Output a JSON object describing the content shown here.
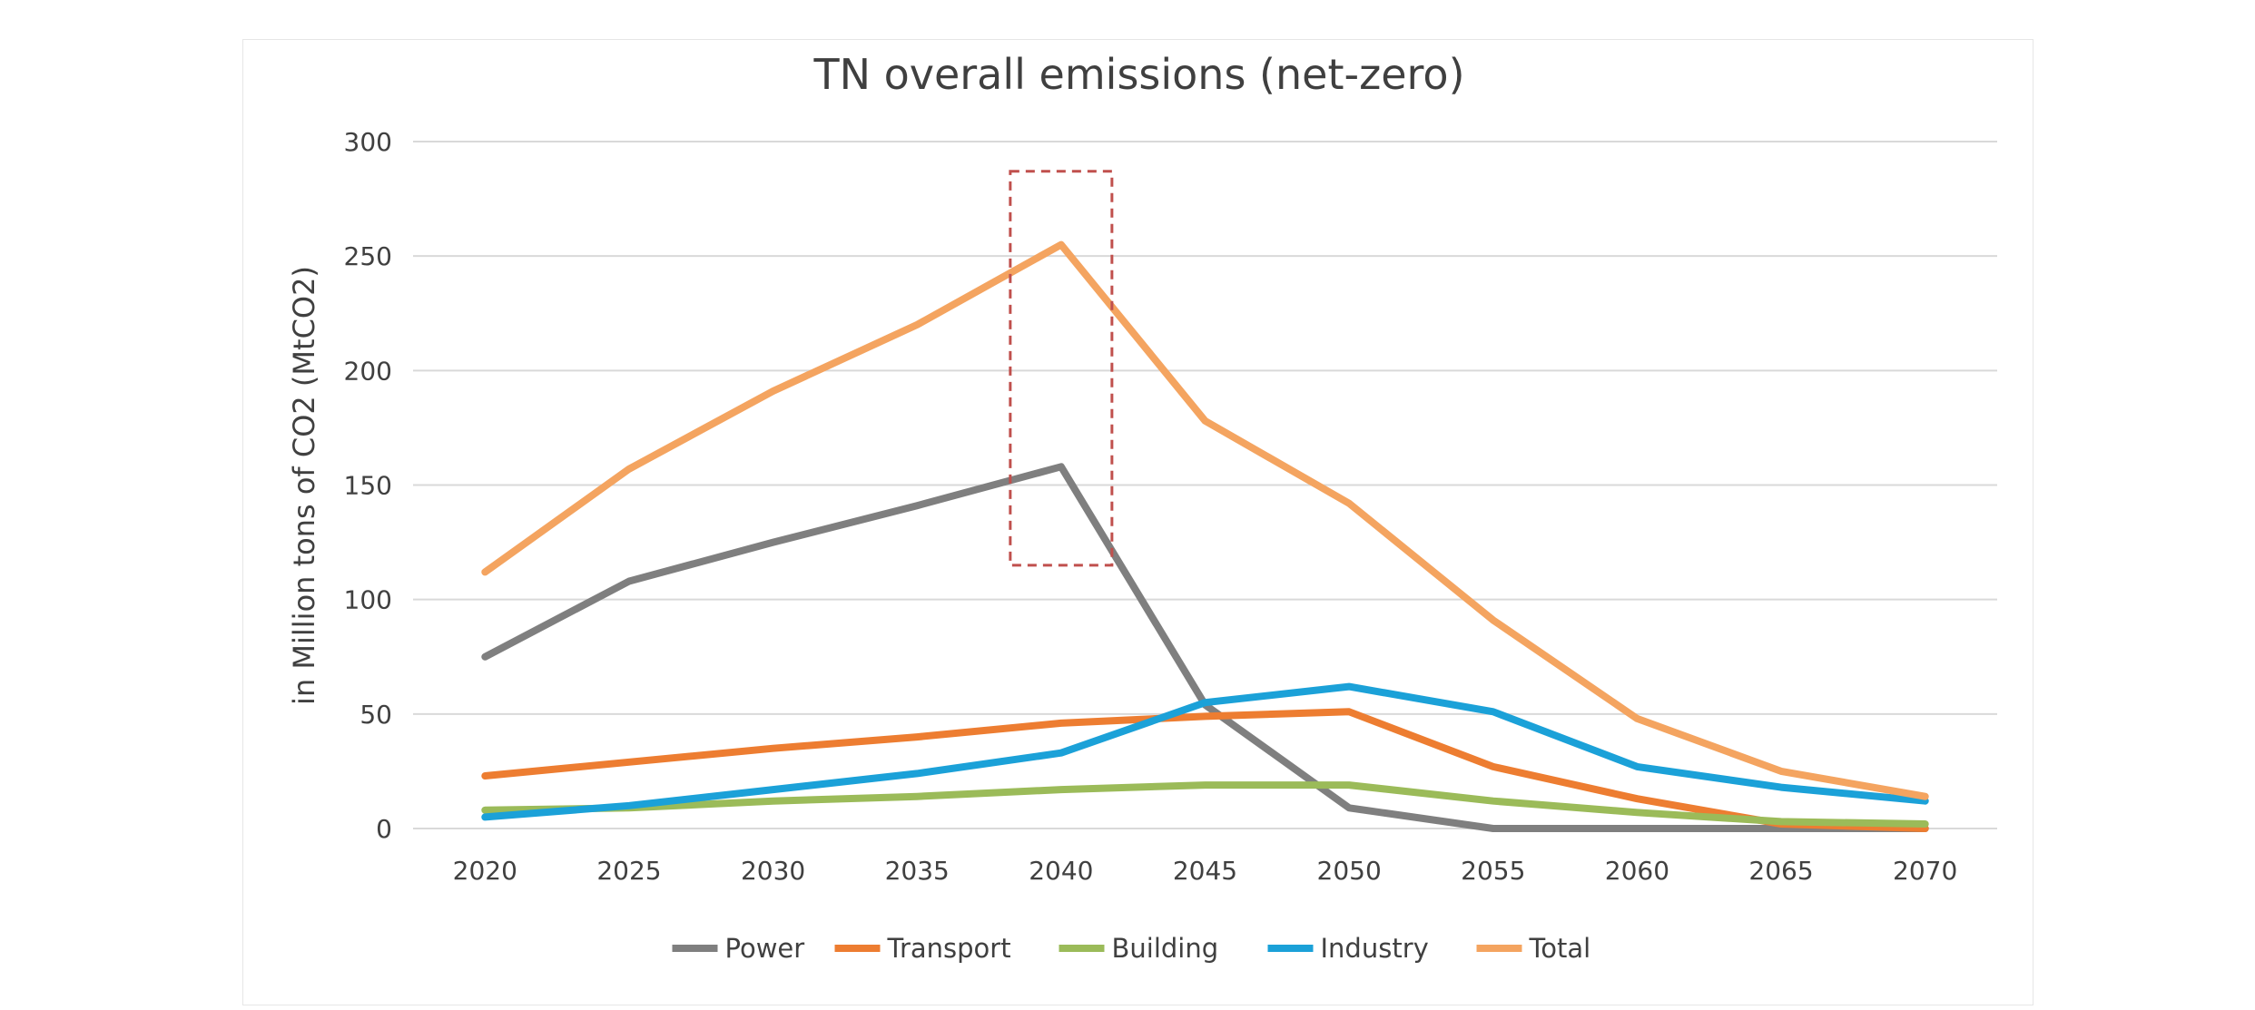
{
  "chart_data": {
    "type": "line",
    "title": "TN overall emissions (net-zero)",
    "xlabel": "",
    "ylabel": "in Million tons of CO2 (MtCO2)",
    "ylim": [
      0,
      300
    ],
    "yticks": [
      "0",
      "50",
      "100",
      "150",
      "200",
      "250",
      "300"
    ],
    "categories": [
      "2020",
      "2025",
      "2030",
      "2035",
      "2040",
      "2045",
      "2050",
      "2055",
      "2060",
      "2065",
      "2070"
    ],
    "grid": true,
    "legend_position": "bottom",
    "series": [
      {
        "name": "Power",
        "color": "#7f7f7f",
        "values": [
          75,
          108,
          125,
          141,
          158,
          54,
          9,
          0,
          0,
          0,
          0
        ]
      },
      {
        "name": "Transport",
        "color": "#ed7d31",
        "values": [
          23,
          29,
          35,
          40,
          46,
          49,
          51,
          27,
          13,
          2,
          0
        ]
      },
      {
        "name": "Building",
        "color": "#9bbb59",
        "values": [
          8,
          9,
          12,
          14,
          17,
          19,
          19,
          12,
          7,
          3,
          2
        ]
      },
      {
        "name": "Industry",
        "color": "#1ba1d8",
        "values": [
          5,
          10,
          17,
          24,
          33,
          55,
          62,
          51,
          27,
          18,
          12
        ]
      },
      {
        "name": "Total",
        "color": "#f4a460",
        "values": [
          112,
          157,
          191,
          220,
          255,
          178,
          142,
          91,
          48,
          25,
          14
        ]
      }
    ],
    "annotations": [
      {
        "type": "dashed-box",
        "color": "#c0504d",
        "x_category": "2040",
        "y_range": [
          115,
          287
        ]
      }
    ]
  }
}
